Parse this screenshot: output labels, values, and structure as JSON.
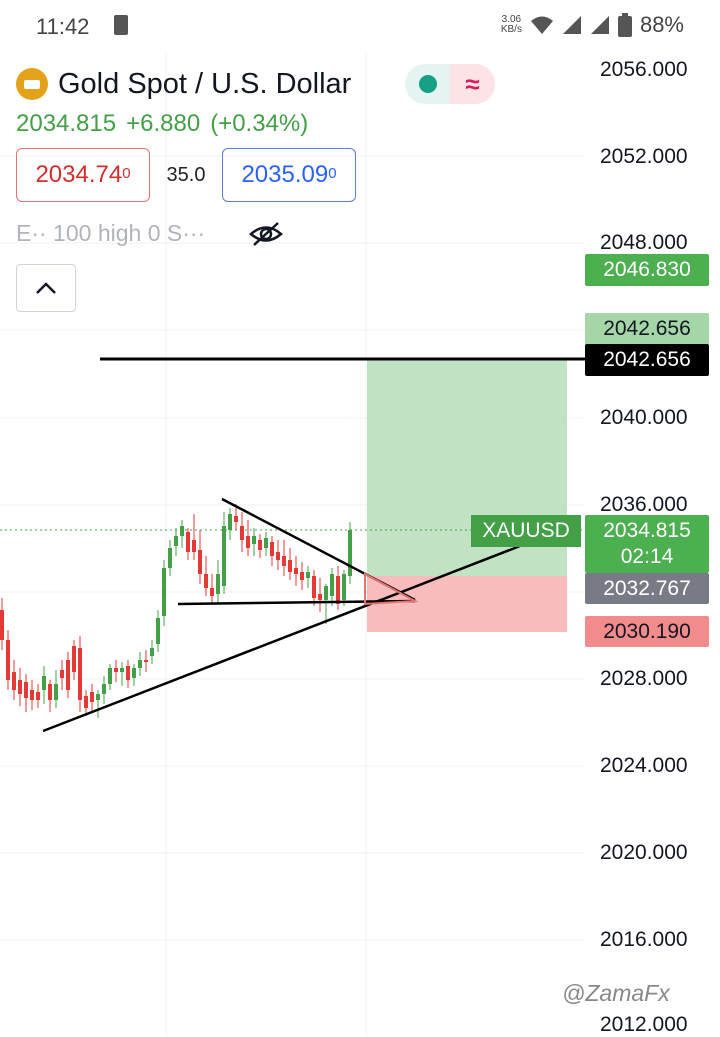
{
  "status_bar": {
    "time": "11:42",
    "net_speed_top": "3.06",
    "net_speed_bottom": "KB/s",
    "battery": "88%"
  },
  "header": {
    "title": "Gold Spot / U.S. Dollar",
    "last_price": "2034.815",
    "change": "+6.880",
    "change_pct": "(+0.34%)",
    "bid": "2034.74",
    "bid_sup": "0",
    "spread": "35.0",
    "ask": "2035.09",
    "ask_sup": "0",
    "indicator_text": "E·· 100 high 0 S···"
  },
  "axis": {
    "labels": [
      "2056.000",
      "2052.000",
      "2048.000",
      "2040.000",
      "2036.000",
      "2028.000",
      "2024.000",
      "2020.000",
      "2016.000",
      "2012.000"
    ]
  },
  "tags": {
    "take_profit": "2046.830",
    "target_light": "2042.656",
    "target_black": "2042.656",
    "symbol": "XAUUSD",
    "current_price": "2034.815",
    "countdown": "02:14",
    "entry": "2032.767",
    "stop": "2030.190"
  },
  "colors": {
    "up": "#26a69a",
    "candle_up": "#43a047",
    "candle_down": "#e53935",
    "profit_zone": "#c1e3c4",
    "loss_zone": "#f9bcbc",
    "tag_green": "#4caf50",
    "tag_light_green": "#a5d6a7",
    "tag_gray": "#787b86",
    "tag_red": "#f28b8b"
  },
  "watermark": "@ZamaFx"
}
